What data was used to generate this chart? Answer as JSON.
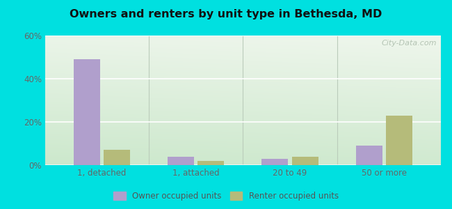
{
  "title": "Owners and renters by unit type in Bethesda, MD",
  "categories": [
    "1, detached",
    "1, attached",
    "20 to 49",
    "50 or more"
  ],
  "owner_values": [
    49,
    4,
    3,
    9
  ],
  "renter_values": [
    7,
    2,
    4,
    23
  ],
  "owner_color": "#b09fcc",
  "renter_color": "#b5bb7a",
  "ylim": [
    0,
    60
  ],
  "yticks": [
    0,
    20,
    40,
    60
  ],
  "ytick_labels": [
    "0%",
    "20%",
    "40%",
    "60%"
  ],
  "bg_outer": "#00e0e0",
  "bg_plot_top_left": "#e6f5e0",
  "bg_plot_top_right": "#f0f8f0",
  "bg_plot_bottom": "#ddeedd",
  "legend_owner": "Owner occupied units",
  "legend_renter": "Renter occupied units",
  "bar_width": 0.28,
  "watermark": "City-Data.com"
}
